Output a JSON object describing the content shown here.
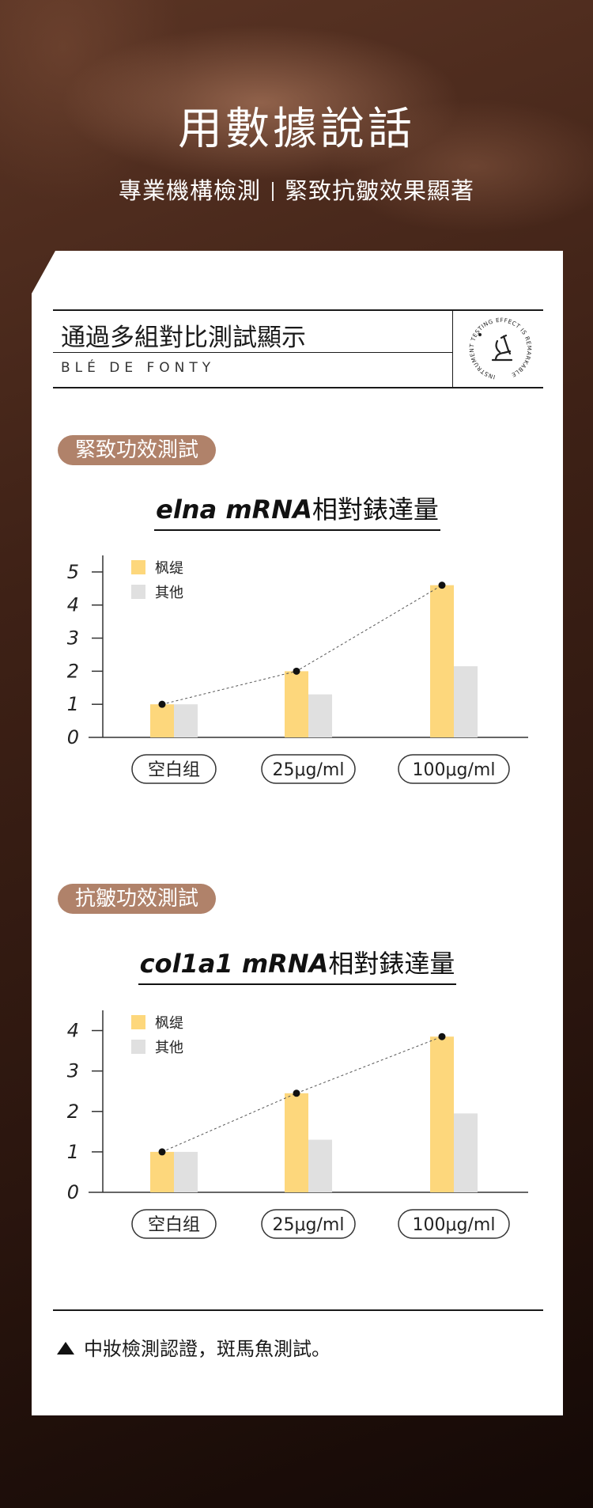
{
  "hero": {
    "title": "用數據說話",
    "subtitle_left": "專業機構檢測",
    "subtitle_right": "緊致抗皺效果顯著"
  },
  "intro": {
    "title": "通過多組對比測試顯示",
    "brand": "BLÉ DE FONTY",
    "seal_text": "INSTRUMENT TESTING EFFECT IS REMARKABLE",
    "seal_icon": "microscope-icon"
  },
  "sections": [
    {
      "pill": "緊致功效測試",
      "title_en": "elna mRNA",
      "title_cn": "相對錶達量"
    },
    {
      "pill": "抗皺功效測試",
      "title_en": "col1a1 mRNA",
      "title_cn": "相對錶達量"
    }
  ],
  "footer": {
    "note": "中妝檢測認證，斑馬魚測試。"
  },
  "colors": {
    "brand_series": "#fdd77c",
    "other_series": "#e0e0e0",
    "pill_bg": "#b0826a"
  },
  "chart_data": [
    {
      "type": "bar",
      "title": "elna mRNA相對錶達量",
      "categories": [
        "空白组",
        "25μg/ml",
        "100μg/ml"
      ],
      "series": [
        {
          "name": "枫缇",
          "values": [
            1.0,
            2.0,
            4.6
          ],
          "color": "#fdd77c"
        },
        {
          "name": "其他",
          "values": [
            1.0,
            1.3,
            2.15
          ],
          "color": "#e0e0e0"
        }
      ],
      "trend_line": {
        "series": "枫缇",
        "style": "dashed",
        "markers": true
      },
      "yticks": [
        0,
        1,
        2,
        3,
        4,
        5
      ],
      "ylim": [
        0,
        5.5
      ],
      "legend": "top-left",
      "grid": false
    },
    {
      "type": "bar",
      "title": "col1a1 mRNA相對錶達量",
      "categories": [
        "空白组",
        "25μg/ml",
        "100μg/ml"
      ],
      "series": [
        {
          "name": "枫缇",
          "values": [
            1.0,
            2.45,
            3.85
          ],
          "color": "#fdd77c"
        },
        {
          "name": "其他",
          "values": [
            1.0,
            1.3,
            1.95
          ],
          "color": "#e0e0e0"
        }
      ],
      "trend_line": {
        "series": "枫缇",
        "style": "dashed",
        "markers": true
      },
      "yticks": [
        0,
        1,
        2,
        3,
        4
      ],
      "ylim": [
        0,
        4.5
      ],
      "legend": "top-left",
      "grid": false
    }
  ]
}
